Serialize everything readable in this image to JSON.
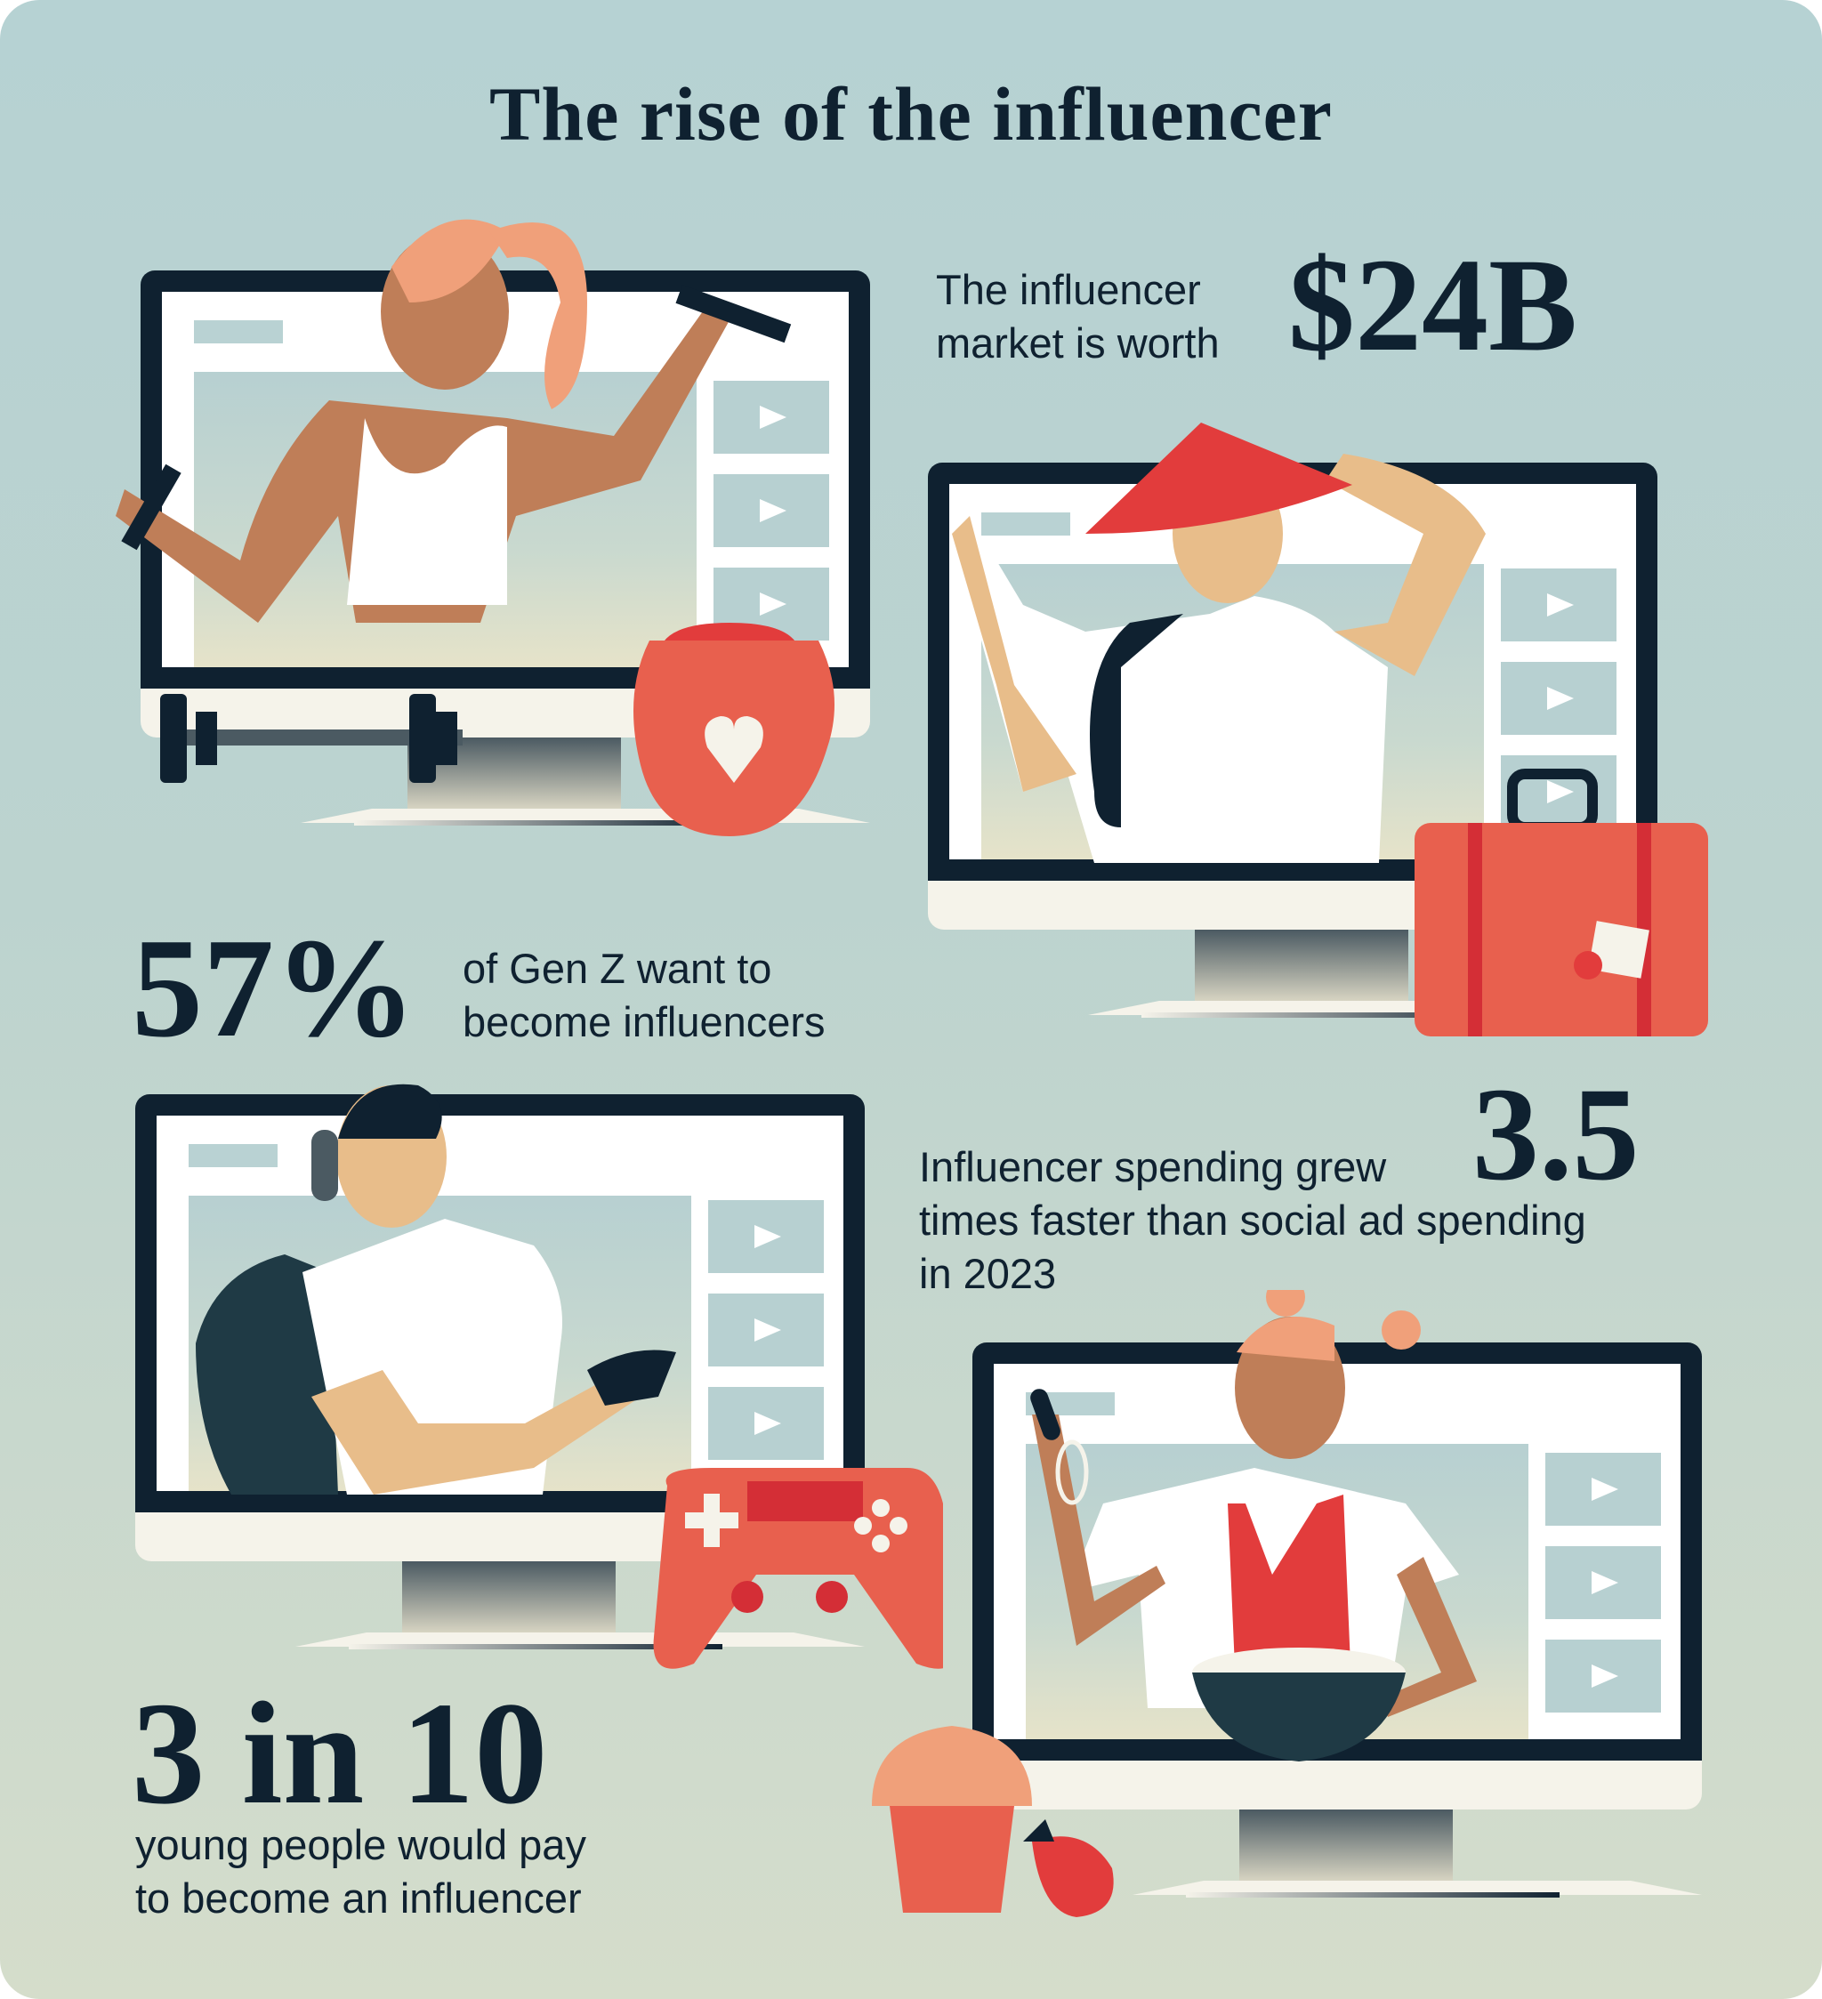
{
  "title": "The rise of the influencer",
  "stats": {
    "market": {
      "label_line1": "The influencer",
      "label_line2": "market is worth",
      "value": "$24B"
    },
    "genz": {
      "value": "57%",
      "label_line1": "of Gen Z want to",
      "label_line2": "become influencers"
    },
    "spending": {
      "label_line1": "Influencer spending grew",
      "value": "3.5",
      "label_line2": "times faster than social ad spending",
      "label_line3": "in 2023"
    },
    "pay": {
      "value": "3 in 10",
      "label_line1": "young people would pay",
      "label_line2": "to become an influencer"
    }
  },
  "colors": {
    "navy": "#0f2130",
    "red": "#e23c3c",
    "peach": "#f0a07a",
    "skin_dark": "#bf7e58",
    "skin_light": "#e8bd8a",
    "background_top": "#b6d2d3",
    "background_bottom": "#d5ddcb"
  },
  "illustrations": [
    "fitness-influencer",
    "travel-influencer",
    "gaming-influencer",
    "cooking-influencer"
  ]
}
